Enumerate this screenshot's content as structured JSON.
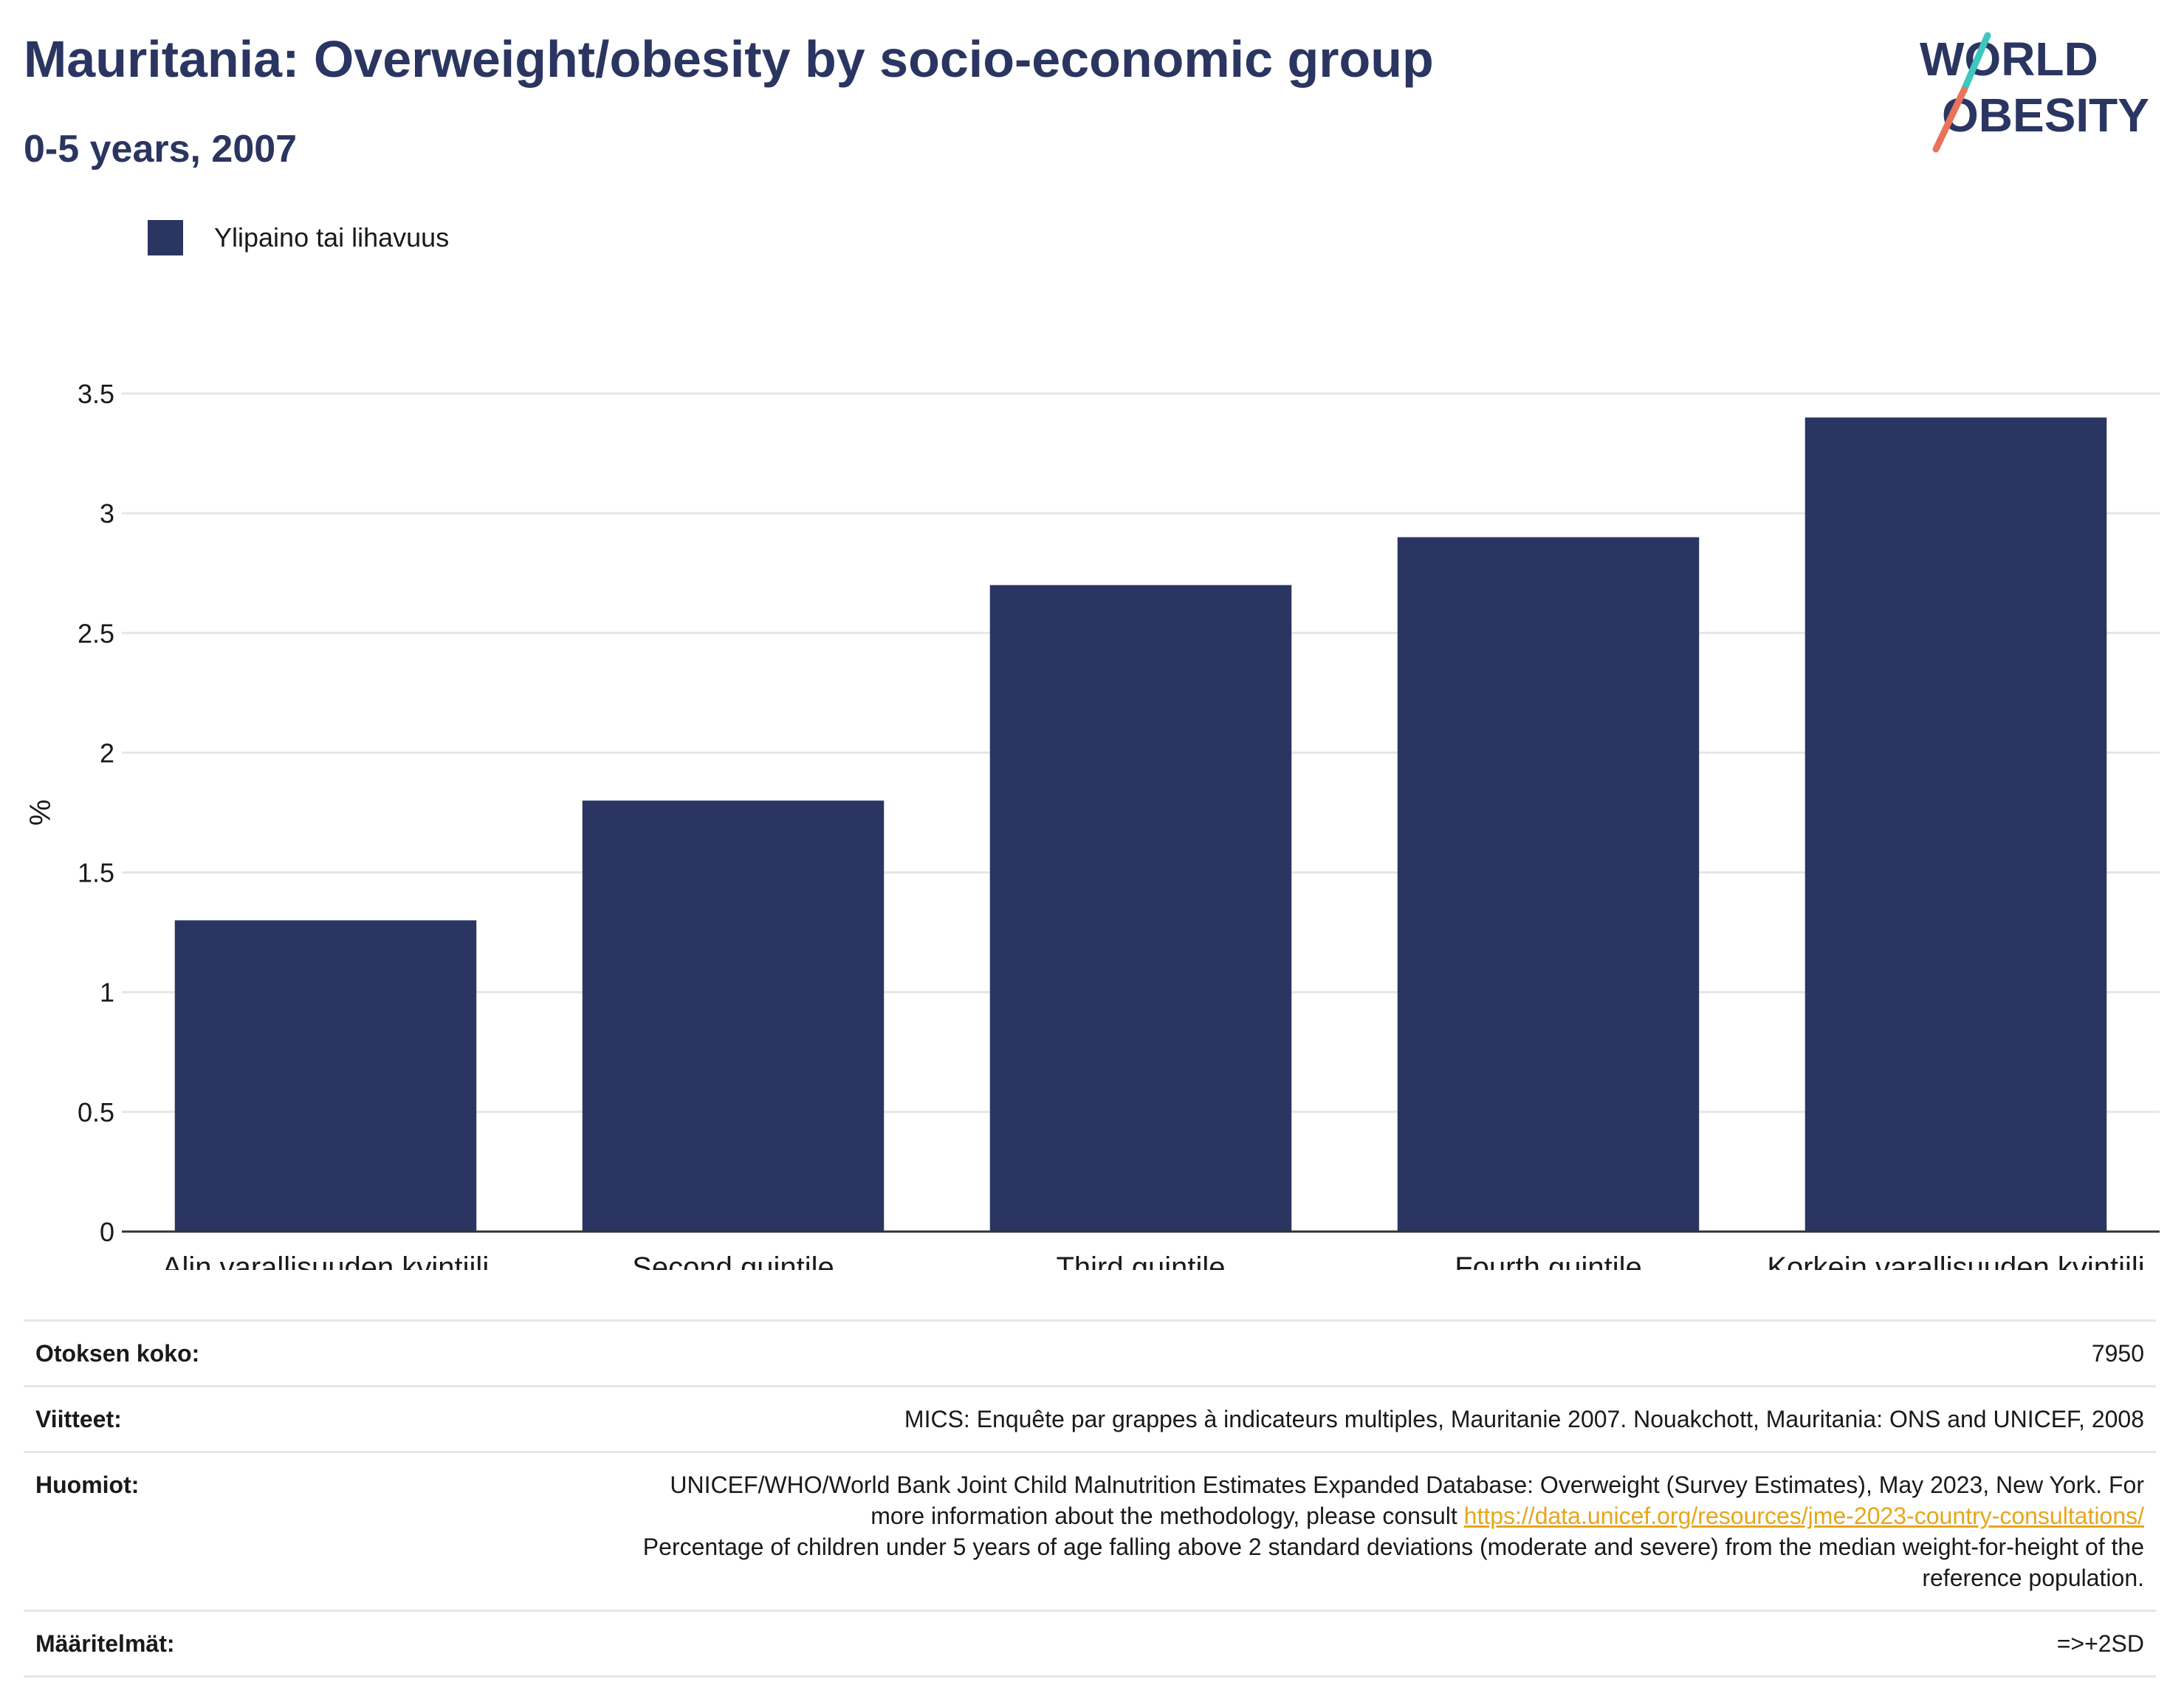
{
  "header": {
    "title": "Mauritania: Overweight/obesity by socio-economic group",
    "subtitle": "0-5 years, 2007"
  },
  "logo": {
    "line1": "WORLD",
    "line2": "OBESITY",
    "colors": {
      "text": "#2a3561",
      "slash_top": "#3ec6c0",
      "slash_bottom": "#e8735a"
    }
  },
  "colors": {
    "bar": "#2a3561",
    "grid": "#e6e6e6",
    "axis": "#333333",
    "link": "#e7a61a"
  },
  "chart_data": {
    "type": "bar",
    "categories": [
      "Alin varallisuuden kvintiili",
      "Second quintile",
      "Third quintile",
      "Fourth quintile",
      "Korkein varallisuuden kvintiili"
    ],
    "series": [
      {
        "name": "Ylipaino tai lihavuus",
        "values": [
          1.3,
          1.8,
          2.7,
          2.9,
          3.4
        ]
      }
    ],
    "ylabel": "%",
    "xlabel": "",
    "ylim": [
      0,
      3.5
    ],
    "yticks": [
      0,
      0.5,
      1,
      1.5,
      2,
      2.5,
      3,
      3.5
    ],
    "ytick_labels": [
      "0",
      "0.5",
      "1",
      "1.5",
      "2",
      "2.5",
      "3",
      "3.5"
    ],
    "grid": true,
    "legend": "top-left"
  },
  "info": {
    "sample_label": "Otoksen koko:",
    "sample_value": "7950",
    "refs_label": "Viitteet:",
    "refs_value": "MICS: Enquête par grappes à indicateurs multiples, Mauritanie 2007. Nouakchott, Mauritania: ONS and UNICEF, 2008",
    "notes_label": "Huomiot:",
    "notes_text1": "UNICEF/WHO/World Bank Joint Child Malnutrition Estimates Expanded Database: Overweight (Survey Estimates), May 2023, New York. For more information about the methodology, please consult ",
    "notes_link": "https://data.unicef.org/resources/jme-2023-country-consultations/",
    "notes_text2": "Percentage of children under 5 years of age falling above 2 standard deviations (moderate and severe) from the median weight-for-height of the reference population.",
    "defs_label": "Määritelmät:",
    "defs_value": "=>+2SD"
  }
}
